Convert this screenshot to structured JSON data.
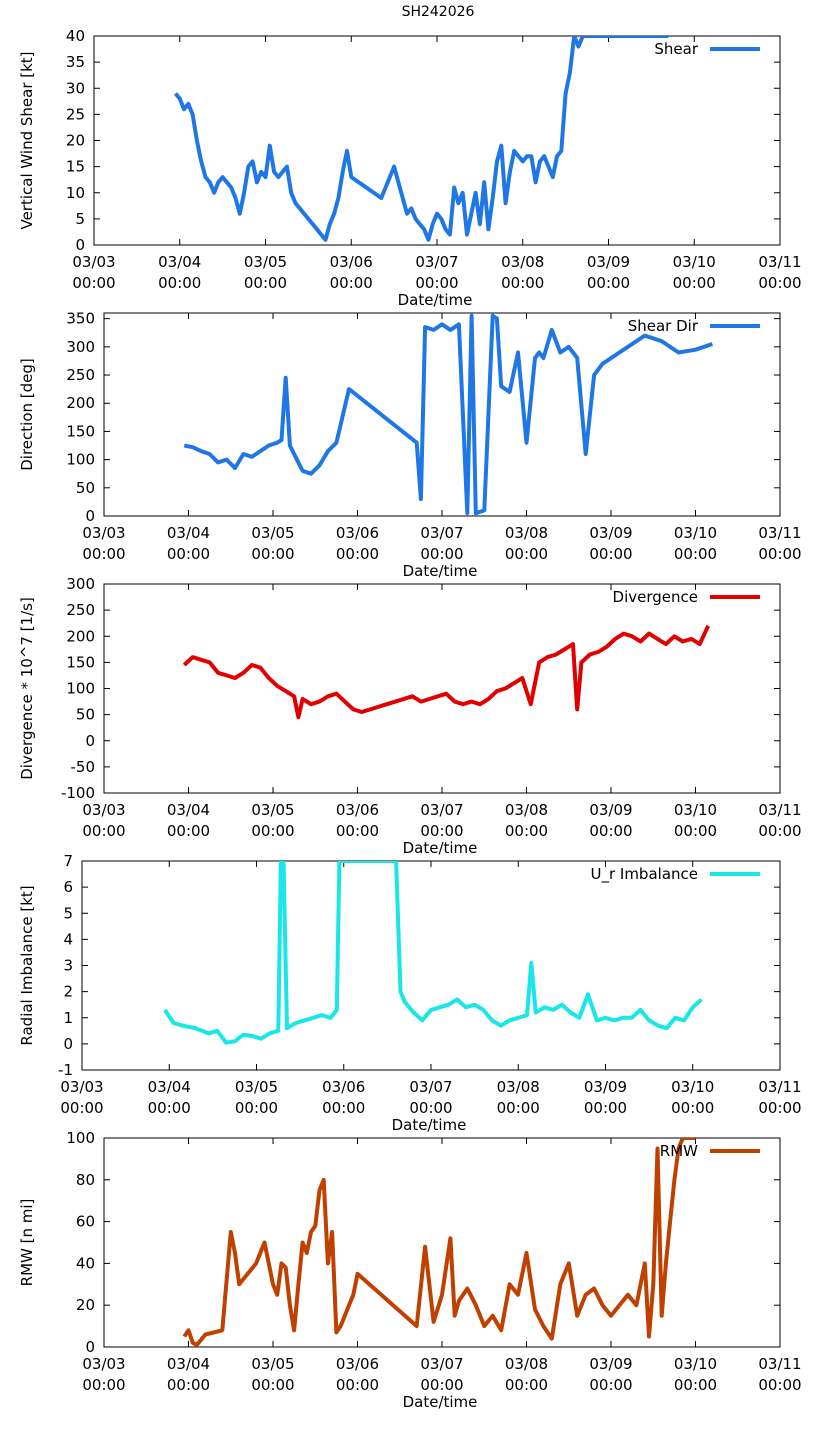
{
  "figure_title": "SH242026",
  "chart_data": [
    {
      "type": "line",
      "xlabel": "Date/time",
      "ylabel": "Vertical Wind Shear [kt]",
      "ylim": [
        0,
        40
      ],
      "yticks": [
        0,
        5,
        10,
        15,
        20,
        25,
        30,
        35,
        40
      ],
      "xlim": [
        0,
        8
      ],
      "xtick_labels": [
        [
          "03/03",
          "00:00"
        ],
        [
          "03/04",
          "00:00"
        ],
        [
          "03/05",
          "00:00"
        ],
        [
          "03/06",
          "00:00"
        ],
        [
          "03/07",
          "00:00"
        ],
        [
          "03/08",
          "00:00"
        ],
        [
          "03/09",
          "00:00"
        ],
        [
          "03/10",
          "00:00"
        ],
        [
          "03/11",
          "00:00"
        ]
      ],
      "grid": false,
      "legend_position": "top-right",
      "series": [
        {
          "name": "Shear",
          "color": "#1f77e6",
          "x": [
            0.95,
            1.0,
            1.05,
            1.1,
            1.15,
            1.2,
            1.25,
            1.3,
            1.35,
            1.4,
            1.45,
            1.5,
            1.55,
            1.6,
            1.65,
            1.7,
            1.75,
            1.8,
            1.85,
            1.9,
            1.95,
            2.0,
            2.05,
            2.1,
            2.15,
            2.2,
            2.25,
            2.3,
            2.35,
            2.4,
            2.45,
            2.5,
            2.55,
            2.6,
            2.65,
            2.7,
            2.75,
            2.8,
            2.85,
            2.9,
            2.95,
            3.0,
            3.35,
            3.5,
            3.65,
            3.7,
            3.75,
            3.8,
            3.85,
            3.9,
            3.95,
            4.0,
            4.05,
            4.1,
            4.15,
            4.2,
            4.25,
            4.3,
            4.35,
            4.4,
            4.45,
            4.5,
            4.55,
            4.6,
            4.65,
            4.7,
            4.75,
            4.8,
            4.85,
            4.9,
            4.95,
            5.0,
            5.05,
            5.1,
            5.15,
            5.2,
            5.25,
            5.3,
            5.35,
            5.4,
            5.45,
            5.5,
            5.55,
            5.6,
            5.65,
            5.7,
            5.75,
            5.8,
            5.85,
            5.9,
            5.95,
            6.0,
            6.05,
            6.1,
            6.15,
            6.2,
            6.25,
            6.3,
            6.35,
            6.4,
            6.45,
            6.5,
            6.55,
            6.6,
            6.65,
            6.7
          ],
          "values": [
            29,
            28,
            26,
            27,
            25,
            20,
            16,
            13,
            12,
            10,
            12,
            13,
            12,
            11,
            9,
            6,
            10,
            15,
            16,
            12,
            14,
            13,
            19,
            14,
            13,
            14,
            15,
            10,
            8,
            7,
            6,
            5,
            4,
            3,
            2,
            1,
            4,
            6,
            9,
            14,
            18,
            13,
            9,
            15,
            6,
            7,
            5,
            4,
            3,
            1,
            4,
            6,
            5,
            3,
            2,
            11,
            8,
            10,
            2,
            6,
            10,
            4,
            12,
            3,
            9,
            16,
            19,
            8,
            14,
            18,
            17,
            16,
            17,
            17,
            12,
            16,
            17,
            15,
            13,
            17,
            18,
            29,
            33,
            40,
            38,
            40,
            40,
            40,
            40,
            40,
            40,
            40,
            40,
            40,
            40,
            40,
            40,
            40,
            40,
            40,
            40,
            40,
            40,
            40,
            40,
            40
          ]
        }
      ]
    },
    {
      "type": "line",
      "xlabel": "Date/time",
      "ylabel": "Direction [deg]",
      "ylim": [
        0,
        360
      ],
      "yticks": [
        0,
        50,
        100,
        150,
        200,
        250,
        300,
        350
      ],
      "xlim": [
        0,
        8
      ],
      "xtick_labels": [
        [
          "03/03",
          "00:00"
        ],
        [
          "03/04",
          "00:00"
        ],
        [
          "03/05",
          "00:00"
        ],
        [
          "03/06",
          "00:00"
        ],
        [
          "03/07",
          "00:00"
        ],
        [
          "03/08",
          "00:00"
        ],
        [
          "03/09",
          "00:00"
        ],
        [
          "03/10",
          "00:00"
        ],
        [
          "03/11",
          "00:00"
        ]
      ],
      "grid": false,
      "legend_position": "top-right",
      "series": [
        {
          "name": "Shear Dir",
          "color": "#1f77e6",
          "x": [
            0.95,
            1.05,
            1.15,
            1.25,
            1.35,
            1.45,
            1.55,
            1.65,
            1.75,
            1.85,
            1.95,
            2.05,
            2.1,
            2.15,
            2.2,
            2.25,
            2.35,
            2.45,
            2.55,
            2.65,
            2.75,
            2.9,
            3.7,
            3.75,
            3.8,
            3.9,
            4.0,
            4.1,
            4.2,
            4.3,
            4.35,
            4.4,
            4.5,
            4.6,
            4.65,
            4.7,
            4.8,
            4.9,
            5.0,
            5.1,
            5.15,
            5.2,
            5.3,
            5.4,
            5.5,
            5.6,
            5.7,
            5.8,
            5.85,
            5.9,
            6.0,
            6.2,
            6.4,
            6.6,
            6.8,
            7.0,
            7.2
          ],
          "values": [
            125,
            122,
            115,
            110,
            95,
            100,
            85,
            110,
            105,
            115,
            125,
            130,
            135,
            245,
            125,
            110,
            80,
            75,
            90,
            115,
            130,
            225,
            130,
            30,
            335,
            330,
            340,
            330,
            340,
            5,
            355,
            5,
            10,
            355,
            350,
            230,
            220,
            290,
            130,
            280,
            290,
            280,
            330,
            290,
            300,
            280,
            110,
            250,
            260,
            270,
            280,
            300,
            320,
            310,
            290,
            295,
            305
          ]
        }
      ]
    },
    {
      "type": "line",
      "xlabel": "Date/time",
      "ylabel": "Divergence * 10^7 [1/s]",
      "ylim": [
        -100,
        300
      ],
      "yticks": [
        -100,
        -50,
        0,
        50,
        100,
        150,
        200,
        250,
        300
      ],
      "xlim": [
        0,
        8
      ],
      "xtick_labels": [
        [
          "03/03",
          "00:00"
        ],
        [
          "03/04",
          "00:00"
        ],
        [
          "03/05",
          "00:00"
        ],
        [
          "03/06",
          "00:00"
        ],
        [
          "03/07",
          "00:00"
        ],
        [
          "03/08",
          "00:00"
        ],
        [
          "03/09",
          "00:00"
        ],
        [
          "03/10",
          "00:00"
        ],
        [
          "03/11",
          "00:00"
        ]
      ],
      "grid": false,
      "legend_position": "top-right",
      "series": [
        {
          "name": "Divergence",
          "color": "#e00000",
          "x": [
            0.95,
            1.05,
            1.15,
            1.25,
            1.35,
            1.45,
            1.55,
            1.65,
            1.75,
            1.85,
            1.95,
            2.05,
            2.15,
            2.25,
            2.3,
            2.35,
            2.45,
            2.55,
            2.65,
            2.75,
            2.85,
            2.95,
            3.05,
            3.65,
            3.75,
            3.85,
            3.95,
            4.05,
            4.15,
            4.25,
            4.35,
            4.45,
            4.55,
            4.65,
            4.75,
            4.85,
            4.95,
            5.05,
            5.15,
            5.25,
            5.35,
            5.45,
            5.55,
            5.6,
            5.65,
            5.75,
            5.85,
            5.95,
            6.05,
            6.15,
            6.25,
            6.35,
            6.45,
            6.55,
            6.65,
            6.75,
            6.85,
            6.95,
            7.05,
            7.15
          ],
          "values": [
            145,
            160,
            155,
            150,
            130,
            125,
            120,
            130,
            145,
            140,
            120,
            105,
            95,
            85,
            45,
            80,
            70,
            75,
            85,
            90,
            75,
            60,
            55,
            85,
            75,
            80,
            85,
            90,
            75,
            70,
            75,
            70,
            80,
            95,
            100,
            110,
            120,
            70,
            150,
            160,
            165,
            175,
            185,
            60,
            150,
            165,
            170,
            180,
            195,
            205,
            200,
            190,
            205,
            195,
            185,
            200,
            190,
            195,
            185,
            220
          ]
        }
      ]
    },
    {
      "type": "line",
      "xlabel": "Date/time",
      "ylabel": "Radial Imbalance [kt]",
      "ylim": [
        -1,
        7
      ],
      "yticks": [
        -1,
        0,
        1,
        2,
        3,
        4,
        5,
        6,
        7
      ],
      "xlim": [
        0,
        8
      ],
      "xtick_labels": [
        [
          "03/03",
          "00:00"
        ],
        [
          "03/04",
          "00:00"
        ],
        [
          "03/05",
          "00:00"
        ],
        [
          "03/06",
          "00:00"
        ],
        [
          "03/07",
          "00:00"
        ],
        [
          "03/08",
          "00:00"
        ],
        [
          "03/09",
          "00:00"
        ],
        [
          "03/10",
          "00:00"
        ],
        [
          "03/11",
          "00:00"
        ]
      ],
      "grid": false,
      "legend_position": "top-right",
      "series": [
        {
          "name": "U_r Imbalance",
          "color": "#19e6e6",
          "x": [
            0.95,
            1.05,
            1.15,
            1.3,
            1.45,
            1.55,
            1.65,
            1.75,
            1.85,
            1.95,
            2.05,
            2.15,
            2.25,
            2.28,
            2.31,
            2.35,
            2.45,
            2.55,
            2.65,
            2.75,
            2.85,
            2.92,
            2.95,
            3.6,
            3.65,
            3.7,
            3.8,
            3.9,
            4.0,
            4.1,
            4.2,
            4.3,
            4.4,
            4.5,
            4.6,
            4.7,
            4.8,
            4.9,
            5.0,
            5.1,
            5.15,
            5.2,
            5.3,
            5.4,
            5.5,
            5.6,
            5.7,
            5.8,
            5.9,
            6.0,
            6.1,
            6.2,
            6.3,
            6.4,
            6.5,
            6.6,
            6.7,
            6.8,
            6.9,
            7.0,
            7.1
          ],
          "values": [
            1.3,
            0.8,
            0.7,
            0.6,
            0.4,
            0.5,
            0.05,
            0.1,
            0.35,
            0.3,
            0.2,
            0.4,
            0.5,
            7,
            7,
            0.6,
            0.8,
            0.9,
            1.0,
            1.1,
            1.0,
            1.3,
            7,
            7,
            2.0,
            1.6,
            1.2,
            0.9,
            1.3,
            1.4,
            1.5,
            1.7,
            1.4,
            1.5,
            1.3,
            0.9,
            0.7,
            0.9,
            1.0,
            1.1,
            3.1,
            1.2,
            1.4,
            1.3,
            1.5,
            1.2,
            1.0,
            1.9,
            0.9,
            1.0,
            0.9,
            1.0,
            1.0,
            1.3,
            0.9,
            0.7,
            0.6,
            1.0,
            0.9,
            1.4,
            1.7
          ]
        }
      ]
    },
    {
      "type": "line",
      "xlabel": "Date/time",
      "ylabel": "RMW [n mi]",
      "ylim": [
        0,
        100
      ],
      "yticks": [
        0,
        20,
        40,
        60,
        80,
        100
      ],
      "xlim": [
        0,
        8
      ],
      "xtick_labels": [
        [
          "03/03",
          "00:00"
        ],
        [
          "03/04",
          "00:00"
        ],
        [
          "03/05",
          "00:00"
        ],
        [
          "03/06",
          "00:00"
        ],
        [
          "03/07",
          "00:00"
        ],
        [
          "03/08",
          "00:00"
        ],
        [
          "03/09",
          "00:00"
        ],
        [
          "03/10",
          "00:00"
        ],
        [
          "03/11",
          "00:00"
        ]
      ],
      "grid": false,
      "legend_position": "top-right",
      "series": [
        {
          "name": "RMW",
          "color": "#c04000",
          "x": [
            0.95,
            1.0,
            1.05,
            1.1,
            1.2,
            1.3,
            1.4,
            1.5,
            1.55,
            1.6,
            1.7,
            1.8,
            1.9,
            2.0,
            2.05,
            2.1,
            2.15,
            2.2,
            2.25,
            2.3,
            2.35,
            2.4,
            2.45,
            2.5,
            2.55,
            2.6,
            2.65,
            2.7,
            2.75,
            2.8,
            2.85,
            2.9,
            2.95,
            3.0,
            3.7,
            3.8,
            3.9,
            4.0,
            4.1,
            4.15,
            4.2,
            4.3,
            4.4,
            4.5,
            4.6,
            4.7,
            4.8,
            4.9,
            5.0,
            5.1,
            5.2,
            5.3,
            5.4,
            5.5,
            5.6,
            5.7,
            5.8,
            5.9,
            6.0,
            6.1,
            6.2,
            6.3,
            6.4,
            6.45,
            6.5,
            6.55,
            6.6,
            6.65,
            6.7,
            6.75,
            6.8,
            6.85,
            6.9,
            6.95,
            7.0
          ],
          "values": [
            5,
            8,
            2,
            1,
            6,
            7,
            8,
            55,
            45,
            30,
            35,
            40,
            50,
            30,
            25,
            40,
            38,
            20,
            8,
            30,
            50,
            45,
            55,
            58,
            75,
            80,
            40,
            55,
            7,
            10,
            15,
            20,
            25,
            35,
            10,
            48,
            12,
            25,
            52,
            15,
            22,
            28,
            20,
            10,
            15,
            8,
            30,
            25,
            45,
            18,
            10,
            4,
            30,
            40,
            15,
            25,
            28,
            20,
            15,
            20,
            25,
            20,
            40,
            5,
            30,
            95,
            15,
            40,
            60,
            80,
            95,
            100,
            100,
            100,
            100
          ]
        }
      ]
    }
  ]
}
